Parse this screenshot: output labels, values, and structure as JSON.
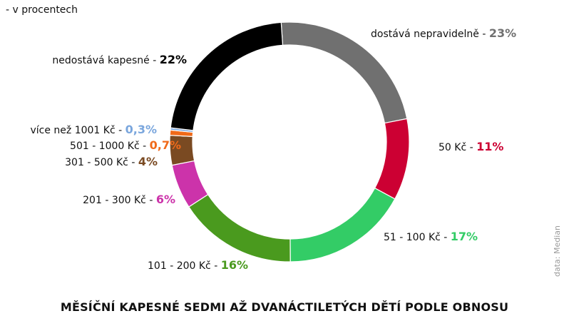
{
  "chart_data": {
    "type": "pie",
    "subtitle": "- v procentech",
    "title": "MĚSÍČNÍ KAPESNÉ SEDMI AŽ DVANÁCTILETÝCH DĚTÍ PODLE OBNOSU",
    "source": "data: Median",
    "slices": [
      {
        "label": "dostává nepravidelně",
        "value": 23,
        "value_text": "23%",
        "color": "#707070"
      },
      {
        "label": "50 Kč",
        "value": 11,
        "value_text": "11%",
        "color": "#cc0033"
      },
      {
        "label": "51 - 100 Kč",
        "value": 17,
        "value_text": "17%",
        "color": "#33cc66"
      },
      {
        "label": "101 - 200 Kč",
        "value": 16,
        "value_text": "16%",
        "color": "#4a9a1e"
      },
      {
        "label": "201 - 300 Kč",
        "value": 6,
        "value_text": "6%",
        "color": "#cc33aa"
      },
      {
        "label": "301 - 500 Kč",
        "value": 4,
        "value_text": "4%",
        "color": "#7a4a22"
      },
      {
        "label": "501 - 1000 Kč",
        "value": 0.7,
        "value_text": "0,7%",
        "color": "#f06a1a"
      },
      {
        "label": "více než 1001 Kč",
        "value": 0.3,
        "value_text": "0,3%",
        "color": "#7aa6dd"
      },
      {
        "label": "nedostává kapesné",
        "value": 22,
        "value_text": "22%",
        "color": "#000000"
      }
    ]
  }
}
